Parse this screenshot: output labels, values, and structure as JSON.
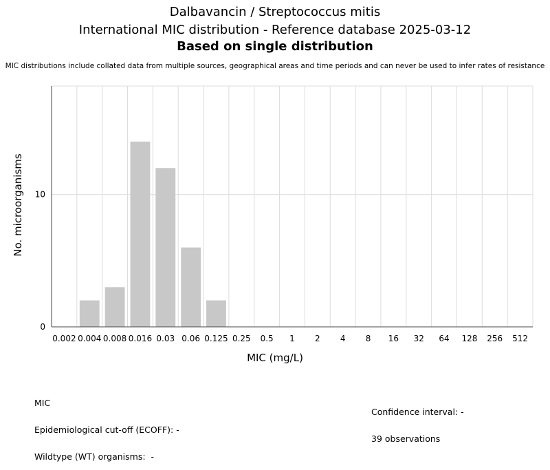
{
  "header": {
    "title": "Dalbavancin / Streptococcus mitis",
    "subtitle": "International MIC distribution - Reference database 2025-03-12",
    "subtitle_bold": "Based on single distribution",
    "disclaimer": "MIC distributions include collated data from multiple sources, geographical areas and time periods and can never be used to infer rates of resistance"
  },
  "chart_data": {
    "type": "bar",
    "xlabel": "MIC (mg/L)",
    "ylabel": "No. microorganisms",
    "categories": [
      "0.002",
      "0.004",
      "0.008",
      "0.016",
      "0.03",
      "0.06",
      "0.125",
      "0.25",
      "0.5",
      "1",
      "2",
      "4",
      "8",
      "16",
      "32",
      "64",
      "128",
      "256",
      "512"
    ],
    "values": [
      0,
      2,
      3,
      14,
      12,
      6,
      2,
      0,
      0,
      0,
      0,
      0,
      0,
      0,
      0,
      0,
      0,
      0,
      0
    ],
    "ylim": [
      0,
      18.2
    ],
    "yticks": [
      0,
      10
    ],
    "grid": true,
    "bar_color": "#c8c8c8"
  },
  "footer": {
    "mic_label": "MIC",
    "ecoff": "Epidemiological cut-off (ECOFF): -",
    "wildtype": "Wildtype (WT) organisms:  -",
    "confidence": "Confidence interval: -",
    "observations": "39 observations"
  }
}
